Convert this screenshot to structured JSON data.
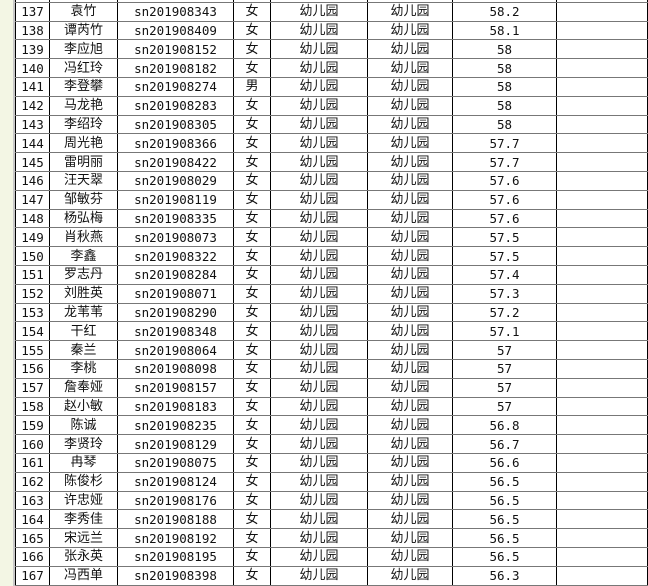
{
  "rows": [
    {
      "no": "137",
      "name": "袁竹",
      "id": "sn201908343",
      "gender": "女",
      "col5": "幼儿园",
      "col6": "幼儿园",
      "score": "58.2"
    },
    {
      "no": "138",
      "name": "谭芮竹",
      "id": "sn201908409",
      "gender": "女",
      "col5": "幼儿园",
      "col6": "幼儿园",
      "score": "58.1"
    },
    {
      "no": "139",
      "name": "李应旭",
      "id": "sn201908152",
      "gender": "女",
      "col5": "幼儿园",
      "col6": "幼儿园",
      "score": "58"
    },
    {
      "no": "140",
      "name": "冯红玲",
      "id": "sn201908182",
      "gender": "女",
      "col5": "幼儿园",
      "col6": "幼儿园",
      "score": "58"
    },
    {
      "no": "141",
      "name": "李登攀",
      "id": "sn201908274",
      "gender": "男",
      "col5": "幼儿园",
      "col6": "幼儿园",
      "score": "58"
    },
    {
      "no": "142",
      "name": "马龙艳",
      "id": "sn201908283",
      "gender": "女",
      "col5": "幼儿园",
      "col6": "幼儿园",
      "score": "58"
    },
    {
      "no": "143",
      "name": "李绍玲",
      "id": "sn201908305",
      "gender": "女",
      "col5": "幼儿园",
      "col6": "幼儿园",
      "score": "58"
    },
    {
      "no": "144",
      "name": "周光艳",
      "id": "sn201908366",
      "gender": "女",
      "col5": "幼儿园",
      "col6": "幼儿园",
      "score": "57.7"
    },
    {
      "no": "145",
      "name": "雷明丽",
      "id": "sn201908422",
      "gender": "女",
      "col5": "幼儿园",
      "col6": "幼儿园",
      "score": "57.7"
    },
    {
      "no": "146",
      "name": "汪天翠",
      "id": "sn201908029",
      "gender": "女",
      "col5": "幼儿园",
      "col6": "幼儿园",
      "score": "57.6"
    },
    {
      "no": "147",
      "name": "邹敏芬",
      "id": "sn201908119",
      "gender": "女",
      "col5": "幼儿园",
      "col6": "幼儿园",
      "score": "57.6"
    },
    {
      "no": "148",
      "name": "杨弘梅",
      "id": "sn201908335",
      "gender": "女",
      "col5": "幼儿园",
      "col6": "幼儿园",
      "score": "57.6"
    },
    {
      "no": "149",
      "name": "肖秋燕",
      "id": "sn201908073",
      "gender": "女",
      "col5": "幼儿园",
      "col6": "幼儿园",
      "score": "57.5"
    },
    {
      "no": "150",
      "name": "李鑫",
      "id": "sn201908322",
      "gender": "女",
      "col5": "幼儿园",
      "col6": "幼儿园",
      "score": "57.5"
    },
    {
      "no": "151",
      "name": "罗志丹",
      "id": "sn201908284",
      "gender": "女",
      "col5": "幼儿园",
      "col6": "幼儿园",
      "score": "57.4"
    },
    {
      "no": "152",
      "name": "刘胜英",
      "id": "sn201908071",
      "gender": "女",
      "col5": "幼儿园",
      "col6": "幼儿园",
      "score": "57.3"
    },
    {
      "no": "153",
      "name": "龙苇苇",
      "id": "sn201908290",
      "gender": "女",
      "col5": "幼儿园",
      "col6": "幼儿园",
      "score": "57.2"
    },
    {
      "no": "154",
      "name": "干红",
      "id": "sn201908348",
      "gender": "女",
      "col5": "幼儿园",
      "col6": "幼儿园",
      "score": "57.1"
    },
    {
      "no": "155",
      "name": "秦兰",
      "id": "sn201908064",
      "gender": "女",
      "col5": "幼儿园",
      "col6": "幼儿园",
      "score": "57"
    },
    {
      "no": "156",
      "name": "李桃",
      "id": "sn201908098",
      "gender": "女",
      "col5": "幼儿园",
      "col6": "幼儿园",
      "score": "57"
    },
    {
      "no": "157",
      "name": "詹奉娅",
      "id": "sn201908157",
      "gender": "女",
      "col5": "幼儿园",
      "col6": "幼儿园",
      "score": "57"
    },
    {
      "no": "158",
      "name": "赵小敏",
      "id": "sn201908183",
      "gender": "女",
      "col5": "幼儿园",
      "col6": "幼儿园",
      "score": "57"
    },
    {
      "no": "159",
      "name": "陈诚",
      "id": "sn201908235",
      "gender": "女",
      "col5": "幼儿园",
      "col6": "幼儿园",
      "score": "56.8"
    },
    {
      "no": "160",
      "name": "李贤玲",
      "id": "sn201908129",
      "gender": "女",
      "col5": "幼儿园",
      "col6": "幼儿园",
      "score": "56.7"
    },
    {
      "no": "161",
      "name": "冉琴",
      "id": "sn201908075",
      "gender": "女",
      "col5": "幼儿园",
      "col6": "幼儿园",
      "score": "56.6"
    },
    {
      "no": "162",
      "name": "陈俊杉",
      "id": "sn201908124",
      "gender": "女",
      "col5": "幼儿园",
      "col6": "幼儿园",
      "score": "56.5"
    },
    {
      "no": "163",
      "name": "许忠娅",
      "id": "sn201908176",
      "gender": "女",
      "col5": "幼儿园",
      "col6": "幼儿园",
      "score": "56.5"
    },
    {
      "no": "164",
      "name": "李秀佳",
      "id": "sn201908188",
      "gender": "女",
      "col5": "幼儿园",
      "col6": "幼儿园",
      "score": "56.5"
    },
    {
      "no": "165",
      "name": "宋远兰",
      "id": "sn201908192",
      "gender": "女",
      "col5": "幼儿园",
      "col6": "幼儿园",
      "score": "56.5"
    },
    {
      "no": "166",
      "name": "张永英",
      "id": "sn201908195",
      "gender": "女",
      "col5": "幼儿园",
      "col6": "幼儿园",
      "score": "56.5"
    },
    {
      "no": "167",
      "name": "冯西单",
      "id": "sn201908398",
      "gender": "女",
      "col5": "幼儿园",
      "col6": "幼儿园",
      "score": "56.3"
    }
  ]
}
